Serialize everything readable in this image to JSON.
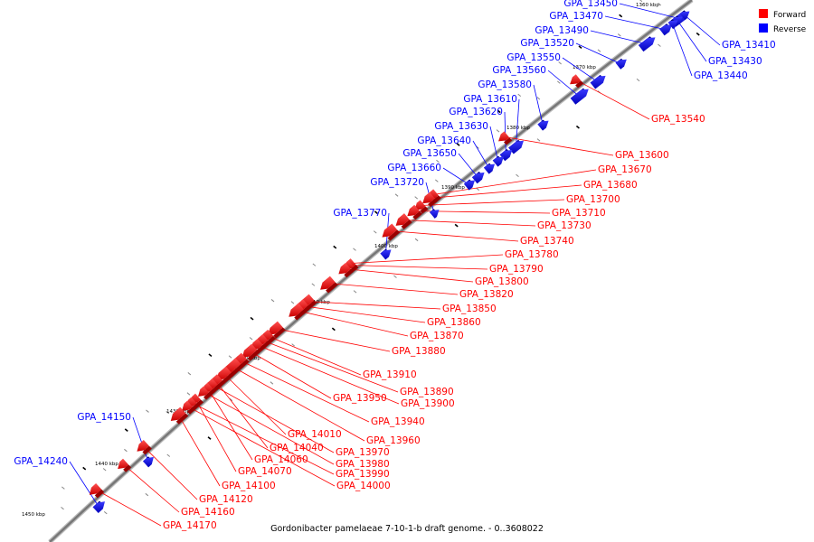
{
  "caption": "Gordonibacter pamelaeae 7-10-1-b draft genome. - 0..3608022",
  "legend": [
    {
      "label": "Forward",
      "color": "#ff0000"
    },
    {
      "label": "Reverse",
      "color": "#0000ff"
    }
  ],
  "colors": {
    "forward": "#ff0000",
    "reverse": "#0000ff",
    "backbone": "#777777"
  },
  "ticks": [
    "1360 kbp",
    "1370 kbp",
    "1380 kbp",
    "1390 kbp",
    "1400 kbp",
    "1410 kbp",
    "1420 kbp",
    "1430 kbp",
    "1440 kbp",
    "1450 kbp"
  ],
  "reverse_genes": [
    "GPA_13450",
    "GPA_13470",
    "GPA_13490",
    "GPA_13520",
    "GPA_13550",
    "GPA_13560",
    "GPA_13580",
    "GPA_13610",
    "GPA_13620",
    "GPA_13630",
    "GPA_13640",
    "GPA_13650",
    "GPA_13660",
    "GPA_13720",
    "GPA_13770",
    "GPA_14150",
    "GPA_14240",
    "GPA_13410",
    "GPA_13430",
    "GPA_13440"
  ],
  "forward_genes": [
    "GPA_13540",
    "GPA_13600",
    "GPA_13670",
    "GPA_13680",
    "GPA_13700",
    "GPA_13710",
    "GPA_13730",
    "GPA_13740",
    "GPA_13780",
    "GPA_13790",
    "GPA_13800",
    "GPA_13820",
    "GPA_13850",
    "GPA_13860",
    "GPA_13870",
    "GPA_13880",
    "GPA_13910",
    "GPA_13890",
    "GPA_13900",
    "GPA_13950",
    "GPA_13940",
    "GPA_13960",
    "GPA_14010",
    "GPA_14040",
    "GPA_13970",
    "GPA_14060",
    "GPA_13980",
    "GPA_14070",
    "GPA_13990",
    "GPA_14000",
    "GPA_14100",
    "GPA_14120",
    "GPA_14160",
    "GPA_14170"
  ]
}
